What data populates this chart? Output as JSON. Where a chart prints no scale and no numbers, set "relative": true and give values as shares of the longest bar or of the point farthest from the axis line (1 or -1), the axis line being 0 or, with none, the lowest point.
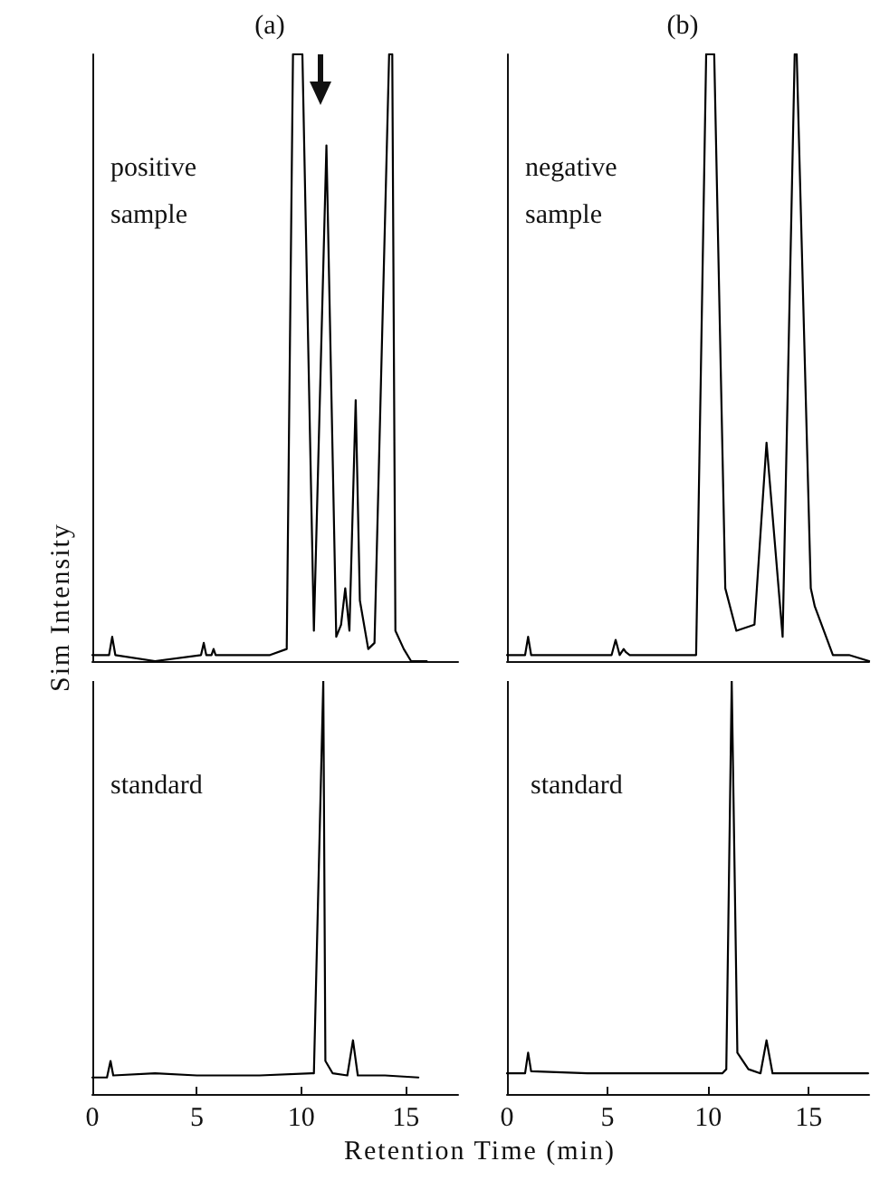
{
  "chart_data": [
    {
      "type": "line",
      "title": "(a)",
      "ylabel": "Sim Intensity",
      "annotations": [
        "positive sample"
      ],
      "relative": true,
      "marker": "none",
      "tick_labels": false,
      "xlim": [
        0,
        17.5
      ],
      "series": [
        {
          "color": "#000000",
          "x": [
            0,
            0.8,
            0.95,
            1.1,
            3,
            5.2,
            5.33,
            5.45,
            5.7,
            5.8,
            5.9,
            7,
            8.5,
            9.3,
            9.6,
            10.05,
            10.6,
            11.2,
            11.67,
            11.9,
            12.1,
            12.3,
            12.6,
            12.8,
            13.2,
            13.5,
            14.2,
            14.35,
            14.5,
            14.9,
            15.25,
            16.0
          ],
          "values": [
            0.01,
            0.01,
            0.04,
            0.01,
            0.0,
            0.01,
            0.03,
            0.01,
            0.01,
            0.02,
            0.01,
            0.01,
            0.01,
            0.02,
            1,
            1,
            0.05,
            0.85,
            0.04,
            0.06,
            0.12,
            0.05,
            0.43,
            0.1,
            0.02,
            0.03,
            1,
            1,
            0.05,
            0.02,
            0,
            0
          ]
        }
      ]
    },
    {
      "type": "line",
      "xlabel": "Retention Time (min)",
      "annotations": [
        "standard"
      ],
      "relative": true,
      "marker": "none",
      "tick_labels": "x",
      "xlim": [
        0,
        17.5
      ],
      "xticks": [
        0,
        5,
        10,
        15
      ],
      "series": [
        {
          "color": "#000000",
          "x": [
            0,
            0.7,
            0.87,
            1.0,
            3,
            5,
            8,
            10.5,
            10.6,
            11.05,
            11.15,
            11.5,
            12.2,
            12.47,
            12.7,
            14,
            15.6
          ],
          "values": [
            0.04,
            0.04,
            0.08,
            0.045,
            0.05,
            0.045,
            0.045,
            0.05,
            0.05,
            1,
            0.08,
            0.05,
            0.045,
            0.13,
            0.045,
            0.045,
            0.04
          ]
        }
      ]
    },
    {
      "type": "line",
      "title": "(b)",
      "annotations": [
        "negative sample"
      ],
      "relative": true,
      "marker": "none",
      "tick_labels": false,
      "xlim": [
        0,
        18
      ],
      "series": [
        {
          "color": "#000000",
          "x": [
            0,
            0.9,
            1.05,
            1.2,
            3,
            5.2,
            5.4,
            5.6,
            5.8,
            5.9,
            6.1,
            8,
            9.4,
            9.9,
            10.3,
            10.85,
            11.4,
            12.3,
            12.9,
            13.7,
            14.3,
            14.4,
            15.1,
            15.3,
            16.2,
            17,
            18
          ],
          "values": [
            0.01,
            0.01,
            0.04,
            0.01,
            0.01,
            0.01,
            0.035,
            0.01,
            0.02,
            0.015,
            0.01,
            0.01,
            0.01,
            1,
            1,
            0.12,
            0.05,
            0.06,
            0.36,
            0.04,
            1,
            1,
            0.12,
            0.09,
            0.01,
            0.01,
            0
          ]
        }
      ]
    },
    {
      "type": "line",
      "annotations": [
        "standard"
      ],
      "relative": true,
      "marker": "none",
      "tick_labels": "x",
      "xlim": [
        0,
        18
      ],
      "xticks": [
        0,
        5,
        10,
        15
      ],
      "series": [
        {
          "color": "#000000",
          "x": [
            0,
            0.9,
            1.05,
            1.2,
            4,
            8,
            10.7,
            10.9,
            11.17,
            11.45,
            12.0,
            12.6,
            12.9,
            13.2,
            15,
            17.95
          ],
          "values": [
            0.05,
            0.05,
            0.1,
            0.055,
            0.05,
            0.05,
            0.05,
            0.06,
            1,
            0.1,
            0.06,
            0.05,
            0.13,
            0.05,
            0.05,
            0.05
          ]
        }
      ]
    }
  ]
}
